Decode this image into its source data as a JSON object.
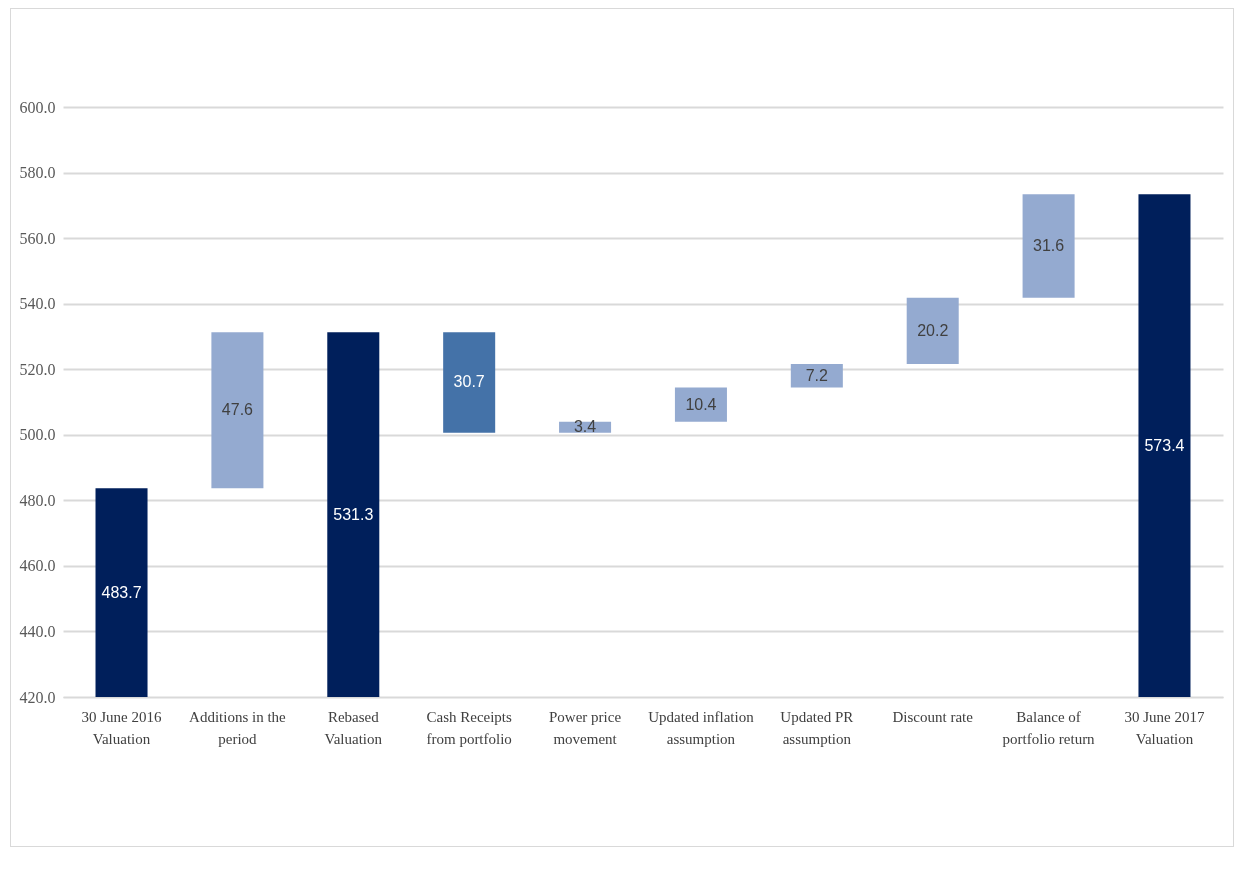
{
  "chart_data": {
    "type": "bar",
    "categories": [
      "30 June 2016 Valuation",
      "Additions in the period",
      "Rebased Valuation",
      "Cash Receipts from portfolio",
      "Power price movement",
      "Updated inflation assumption",
      "Updated PR assumption",
      "Discount rate",
      "Balance of portfolio return",
      "30 June 2017 Valuation"
    ],
    "values": [
      483.7,
      47.6,
      531.3,
      30.7,
      3.4,
      10.4,
      7.2,
      20.2,
      31.6,
      573.4
    ],
    "base": [
      null,
      483.7,
      null,
      500.6,
      500.6,
      504.0,
      514.4,
      521.6,
      541.8,
      null
    ],
    "colors": [
      "#001f5b",
      "#94aad0",
      "#001f5b",
      "#4472a8",
      "#94aad0",
      "#94aad0",
      "#94aad0",
      "#94aad0",
      "#94aad0",
      "#001f5b"
    ],
    "ylim": [
      420,
      600
    ],
    "yticks": [
      {
        "value": 420,
        "label": "420.0"
      },
      {
        "value": 440,
        "label": "440.0"
      },
      {
        "value": 460,
        "label": "460.0"
      },
      {
        "value": 480,
        "label": "480.0"
      },
      {
        "value": 500,
        "label": "500.0"
      },
      {
        "value": 520,
        "label": "520.0"
      },
      {
        "value": 540,
        "label": "540.0"
      },
      {
        "value": 560,
        "label": "560.0"
      },
      {
        "value": 580,
        "label": "580.0"
      },
      {
        "value": 600,
        "label": "600.0"
      }
    ],
    "grid": "y",
    "data_labels": true
  }
}
